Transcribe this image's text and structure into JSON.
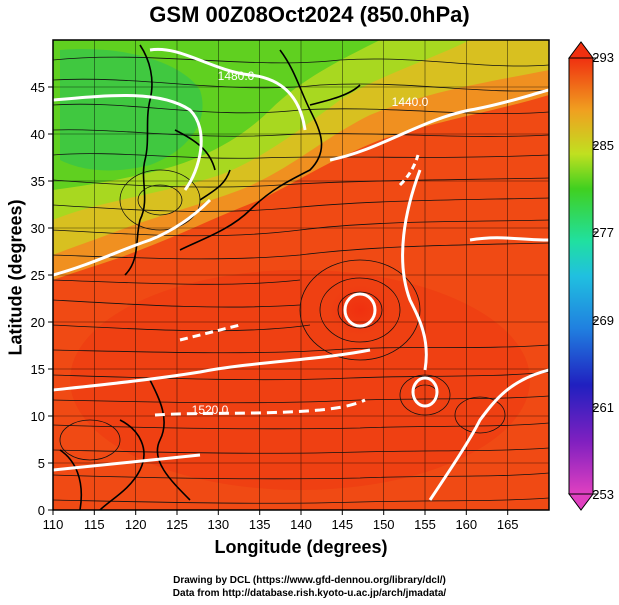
{
  "title": "GSM 00Z08Oct2024 (850.0hPa)",
  "xlabel": "Longitude (degrees)",
  "ylabel": "Latitude  (degrees)",
  "xticks": [
    "110",
    "115",
    "120",
    "125",
    "130",
    "135",
    "140",
    "145",
    "150",
    "155",
    "160",
    "165"
  ],
  "yticks": [
    "0",
    "5",
    "10",
    "15",
    "20",
    "25",
    "30",
    "35",
    "40",
    "45"
  ],
  "colorbar_ticks": [
    "293",
    "285",
    "277",
    "269",
    "261",
    "253"
  ],
  "contour_labels": [
    "1480.0",
    "1440.0",
    "1520.0"
  ],
  "credit_line1": "Drawing by DCL (https://www.gfd-dennou.org/library/dcl/)",
  "credit_line2": "Data from http://database.rish.kyoto-u.ac.jp/arch/jmadata/",
  "map": {
    "lon_range": [
      110,
      170
    ],
    "lat_range": [
      0,
      50
    ],
    "field": "temperature (K) with streamlines and geopotential height contours",
    "colorbar_range": [
      253,
      293
    ],
    "colorbar_colors": [
      "#e040c0",
      "#2020c0",
      "#20a0e0",
      "#20e0a0",
      "#40d020",
      "#c0e020",
      "#f0a020",
      "#f04010"
    ]
  }
}
